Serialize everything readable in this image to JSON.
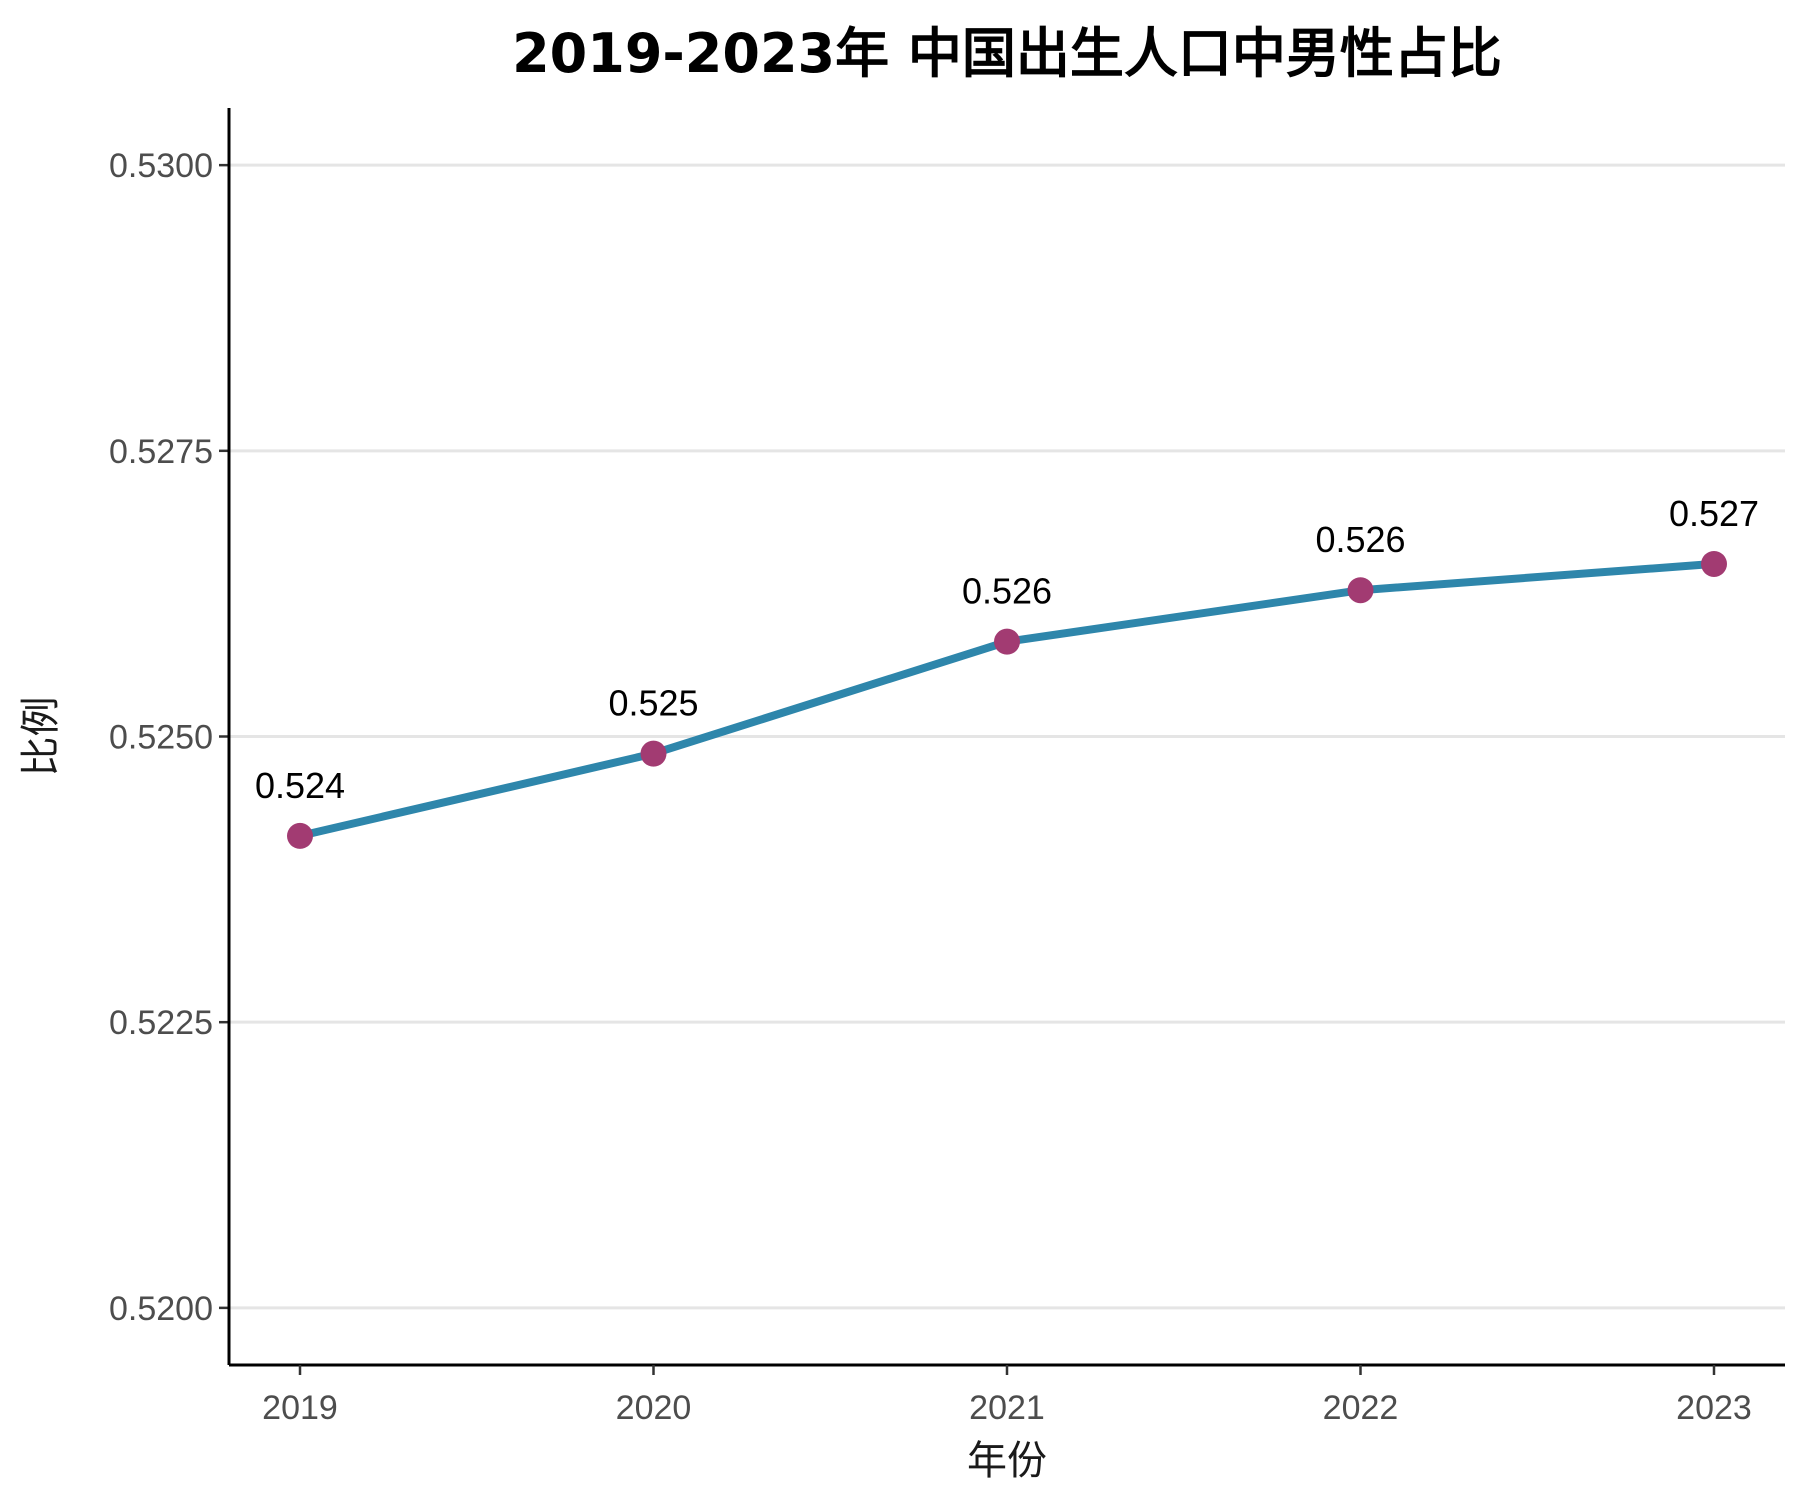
{
  "chart_data": {
    "type": "line",
    "title": "2019-2023年 中国出生人口中男性占比",
    "xlabel": "年份",
    "ylabel": "比例",
    "categories": [
      "2019",
      "2020",
      "2021",
      "2022",
      "2023"
    ],
    "series": [
      {
        "values": [
          0.52413,
          0.52485,
          0.52583,
          0.52628,
          0.52651
        ],
        "labels": [
          "0.524",
          "0.525",
          "0.526",
          "0.526",
          "0.527"
        ]
      }
    ],
    "ylim": [
      0.5195,
      0.5305
    ],
    "yticks": [
      0.52,
      0.5225,
      0.525,
      0.5275,
      0.53
    ],
    "ytick_labels": [
      "0.5200",
      "0.5225",
      "0.5250",
      "0.5275",
      "0.5300"
    ],
    "grid": "horizontal-major",
    "legend": "none",
    "colors": {
      "line": "#2E86AB",
      "point": "#A23B72",
      "grid": "#E5E5E5",
      "axis": "#000000"
    }
  }
}
